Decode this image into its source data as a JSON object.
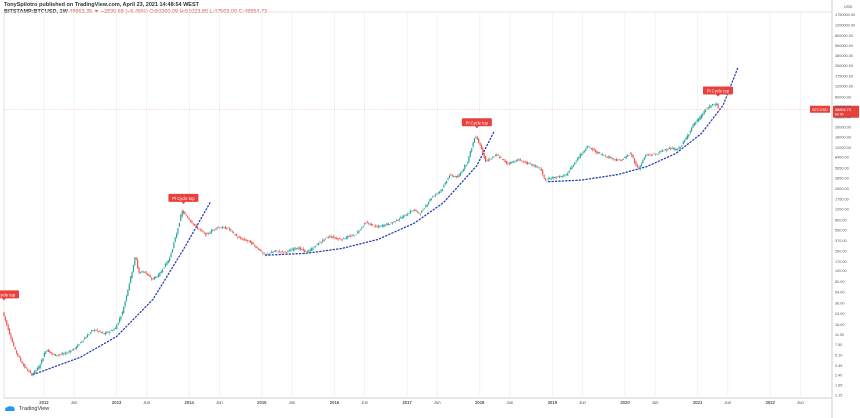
{
  "header": {
    "publisher_line": "TonySpilotro published on TradingView.com, April 23, 2021 14:48:54 WEST",
    "symbol": "BITSTAMP:BTCUSD, 1W",
    "ohlc": "48863.35 ▼ −2830.68 (−5.46%) O:50260.09 H:51023.80 L:47503.00 C:48854.73"
  },
  "footer": {
    "logo_text": "TradingView"
  },
  "colors": {
    "up": "#26a69a",
    "down": "#ef5350",
    "curve": "#2941b5",
    "label_bg": "#e8403c",
    "price_tag": "#e8403c"
  },
  "chart_data": {
    "type": "candlestick",
    "scale": "log",
    "title": "",
    "x_tick_labels": [
      "2012",
      "Jun",
      "2013",
      "Jun",
      "2014",
      "Jun",
      "2015",
      "Jun",
      "2016",
      "Jun",
      "2017",
      "Jun",
      "2018",
      "Jun",
      "2019",
      "Jun",
      "2020",
      "Jun",
      "2021",
      "Jun",
      "2022",
      "Jun"
    ],
    "y_tick_values": [
      1.15,
      1.65,
      2.4,
      3.45,
      5.1,
      7.5,
      11.0,
      16.0,
      24.0,
      36.0,
      54.0,
      80.0,
      120.0,
      170.0,
      250.0,
      370.0,
      550.0,
      800.0,
      1200.0,
      1750.0,
      2600.0,
      3850.0,
      5650.0,
      8400.0,
      12000.0,
      18000.0,
      26000.0,
      38000.0,
      56000.0,
      80000.0,
      120000.0,
      175000.0,
      260000.0,
      380000.0,
      550000.0,
      800000.0,
      1200000.0,
      1750000.0
    ],
    "top_axis_label": "USD",
    "current_price": {
      "symbol": "BTCUSD",
      "value": "48854.73",
      "countdown": "6d 9h"
    },
    "annotations": [
      {
        "text": "Pi Cycle top",
        "date": "2011.45",
        "price": 31
      },
      {
        "text": "Pi Cycle top",
        "date": "2013.92",
        "price": 1150
      },
      {
        "text": "Pi Cycle top",
        "date": "2017.96",
        "price": 19500
      },
      {
        "text": "Pi Cycle top",
        "date": "2021.28",
        "price": 64000
      }
    ],
    "price_path": [
      [
        2011.45,
        25
      ],
      [
        2011.52,
        14
      ],
      [
        2011.62,
        6
      ],
      [
        2011.75,
        3.2
      ],
      [
        2011.85,
        2.4
      ],
      [
        2011.95,
        3.2
      ],
      [
        2012.05,
        6.2
      ],
      [
        2012.15,
        5.0
      ],
      [
        2012.3,
        5.2
      ],
      [
        2012.45,
        6.5
      ],
      [
        2012.6,
        10
      ],
      [
        2012.7,
        13
      ],
      [
        2012.85,
        11
      ],
      [
        2013.0,
        13.5
      ],
      [
        2013.1,
        25
      ],
      [
        2013.22,
        100
      ],
      [
        2013.28,
        210
      ],
      [
        2013.32,
        110
      ],
      [
        2013.4,
        115
      ],
      [
        2013.5,
        85
      ],
      [
        2013.6,
        100
      ],
      [
        2013.75,
        190
      ],
      [
        2013.85,
        500
      ],
      [
        2013.92,
        1100
      ],
      [
        2014.0,
        850
      ],
      [
        2014.12,
        600
      ],
      [
        2014.25,
        450
      ],
      [
        2014.4,
        600
      ],
      [
        2014.55,
        580
      ],
      [
        2014.7,
        400
      ],
      [
        2014.85,
        350
      ],
      [
        2015.0,
        250
      ],
      [
        2015.05,
        210
      ],
      [
        2015.2,
        245
      ],
      [
        2015.35,
        235
      ],
      [
        2015.5,
        280
      ],
      [
        2015.65,
        235
      ],
      [
        2015.8,
        330
      ],
      [
        2015.95,
        430
      ],
      [
        2016.1,
        380
      ],
      [
        2016.3,
        450
      ],
      [
        2016.45,
        720
      ],
      [
        2016.6,
        600
      ],
      [
        2016.8,
        700
      ],
      [
        2017.0,
        950
      ],
      [
        2017.1,
        1150
      ],
      [
        2017.2,
        1000
      ],
      [
        2017.35,
        1800
      ],
      [
        2017.5,
        2500
      ],
      [
        2017.6,
        4200
      ],
      [
        2017.72,
        3900
      ],
      [
        2017.85,
        7000
      ],
      [
        2017.96,
        19000
      ],
      [
        2018.05,
        11000
      ],
      [
        2018.1,
        7000
      ],
      [
        2018.25,
        9000
      ],
      [
        2018.4,
        6500
      ],
      [
        2018.55,
        7500
      ],
      [
        2018.7,
        6400
      ],
      [
        2018.85,
        5500
      ],
      [
        2018.92,
        3400
      ],
      [
        2019.0,
        3800
      ],
      [
        2019.2,
        4100
      ],
      [
        2019.35,
        7500
      ],
      [
        2019.5,
        12500
      ],
      [
        2019.62,
        10000
      ],
      [
        2019.8,
        8200
      ],
      [
        2019.95,
        7200
      ],
      [
        2020.1,
        9500
      ],
      [
        2020.2,
        5200
      ],
      [
        2020.3,
        8800
      ],
      [
        2020.45,
        9300
      ],
      [
        2020.6,
        11500
      ],
      [
        2020.75,
        11000
      ],
      [
        2020.85,
        16000
      ],
      [
        2020.96,
        28000
      ],
      [
        2021.05,
        36000
      ],
      [
        2021.12,
        48000
      ],
      [
        2021.2,
        57000
      ],
      [
        2021.28,
        61000
      ],
      [
        2021.31,
        48854
      ]
    ],
    "bottom_curve": [
      [
        2011.85,
        2.4
      ],
      [
        2012.5,
        4.6
      ],
      [
        2013.0,
        10
      ],
      [
        2013.5,
        40
      ],
      [
        2013.92,
        260
      ],
      [
        2014.3,
        1600
      ]
    ],
    "bottom_curve_2": [
      [
        2015.05,
        210
      ],
      [
        2015.6,
        225
      ],
      [
        2016.1,
        270
      ],
      [
        2016.6,
        380
      ],
      [
        2017.1,
        700
      ],
      [
        2017.5,
        1500
      ],
      [
        2017.96,
        6000
      ],
      [
        2018.2,
        22000
      ]
    ],
    "bottom_curve_3": [
      [
        2018.95,
        3300
      ],
      [
        2019.4,
        3500
      ],
      [
        2019.9,
        4300
      ],
      [
        2020.3,
        5800
      ],
      [
        2020.7,
        9500
      ],
      [
        2021.05,
        20000
      ],
      [
        2021.35,
        58000
      ],
      [
        2021.55,
        230000
      ]
    ]
  }
}
